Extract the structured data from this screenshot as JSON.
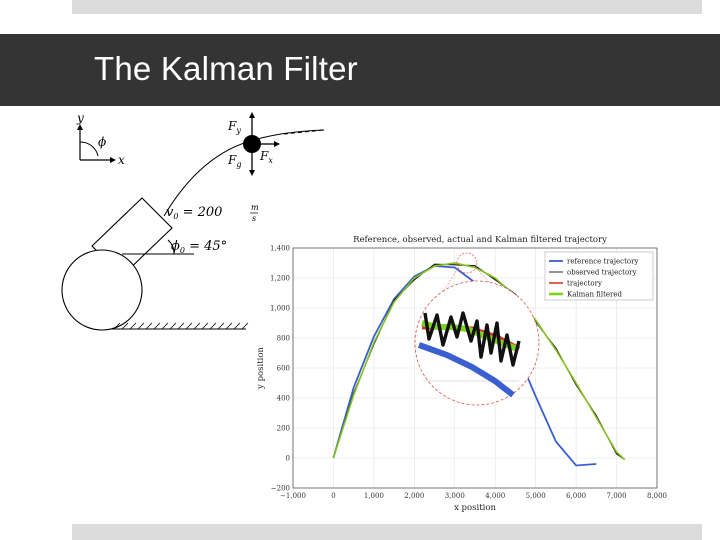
{
  "slide": {
    "title": "The Kalman Filter"
  },
  "diagram": {
    "axis_y": "y",
    "axis_x": "x",
    "angle_symbol": "ϕ",
    "force_y_top": "F",
    "force_y_top_sub": "y",
    "force_x": "F",
    "force_x_sub": "x",
    "force_g": "F",
    "force_g_sub": "g",
    "velocity_label": "v",
    "velocity_sub": "0",
    "velocity_eq": " = 200",
    "velocity_unit_num": "m",
    "velocity_unit_den": "s",
    "angle_label": "ϕ",
    "angle_sub": "0",
    "angle_eq": " = 45°"
  },
  "chart_data": {
    "type": "line",
    "title": "Reference, observed, actual and Kalman filtered trajectory",
    "xlabel": "x position",
    "ylabel": "y position",
    "xlim": [
      -1000,
      8000
    ],
    "ylim": [
      -200,
      1400
    ],
    "x_ticks": [
      "−1,000",
      "0",
      "1,000",
      "2,000",
      "3,000",
      "4,000",
      "5,000",
      "6,000",
      "7,000",
      "8,000"
    ],
    "y_ticks": [
      "−200",
      "0",
      "200",
      "400",
      "600",
      "800",
      "1,000",
      "1,200",
      "1,400"
    ],
    "grid": true,
    "legend_position": "top-right",
    "legend": [
      "reference trajectory",
      "observed trajectory",
      "trajectory",
      "Kalman filtered"
    ],
    "colors": {
      "reference": "#3a5fd0",
      "observed": "#111111",
      "trajectory": "#d63b2a",
      "kalman": "#7ed321",
      "zoom_circle": "#d9534f"
    },
    "series": [
      {
        "name": "reference trajectory",
        "x": [
          0,
          500,
          1000,
          1500,
          2000,
          2500,
          3000,
          3500,
          4000,
          4500,
          5000,
          5500,
          6000,
          6500
        ],
        "y": [
          0,
          470,
          810,
          1060,
          1210,
          1280,
          1270,
          1170,
          990,
          730,
          410,
          110,
          -50,
          -40
        ]
      },
      {
        "name": "observed trajectory",
        "x": [
          0,
          500,
          1000,
          1500,
          2000,
          2500,
          3000,
          3500,
          4000,
          4500,
          5000,
          5500,
          6000,
          6500,
          7000,
          7200
        ],
        "y": [
          0,
          420,
          770,
          1040,
          1200,
          1280,
          1300,
          1270,
          1200,
          1080,
          920,
          720,
          500,
          270,
          40,
          -10
        ]
      },
      {
        "name": "trajectory",
        "x": [
          0,
          500,
          1000,
          1500,
          2000,
          2500,
          3000,
          3500,
          4000,
          4500,
          5000,
          5500,
          6000,
          6500,
          7000,
          7200
        ],
        "y": [
          0,
          420,
          770,
          1040,
          1200,
          1280,
          1300,
          1270,
          1200,
          1080,
          920,
          720,
          500,
          270,
          40,
          -10
        ]
      },
      {
        "name": "Kalman filtered",
        "x": [
          0,
          500,
          1000,
          1500,
          2000,
          2500,
          3000,
          3500,
          4000,
          4500,
          5000,
          5500,
          6000,
          6500,
          7000,
          7200
        ],
        "y": [
          0,
          420,
          770,
          1040,
          1200,
          1280,
          1300,
          1270,
          1200,
          1080,
          920,
          720,
          500,
          270,
          40,
          -10
        ]
      }
    ]
  }
}
